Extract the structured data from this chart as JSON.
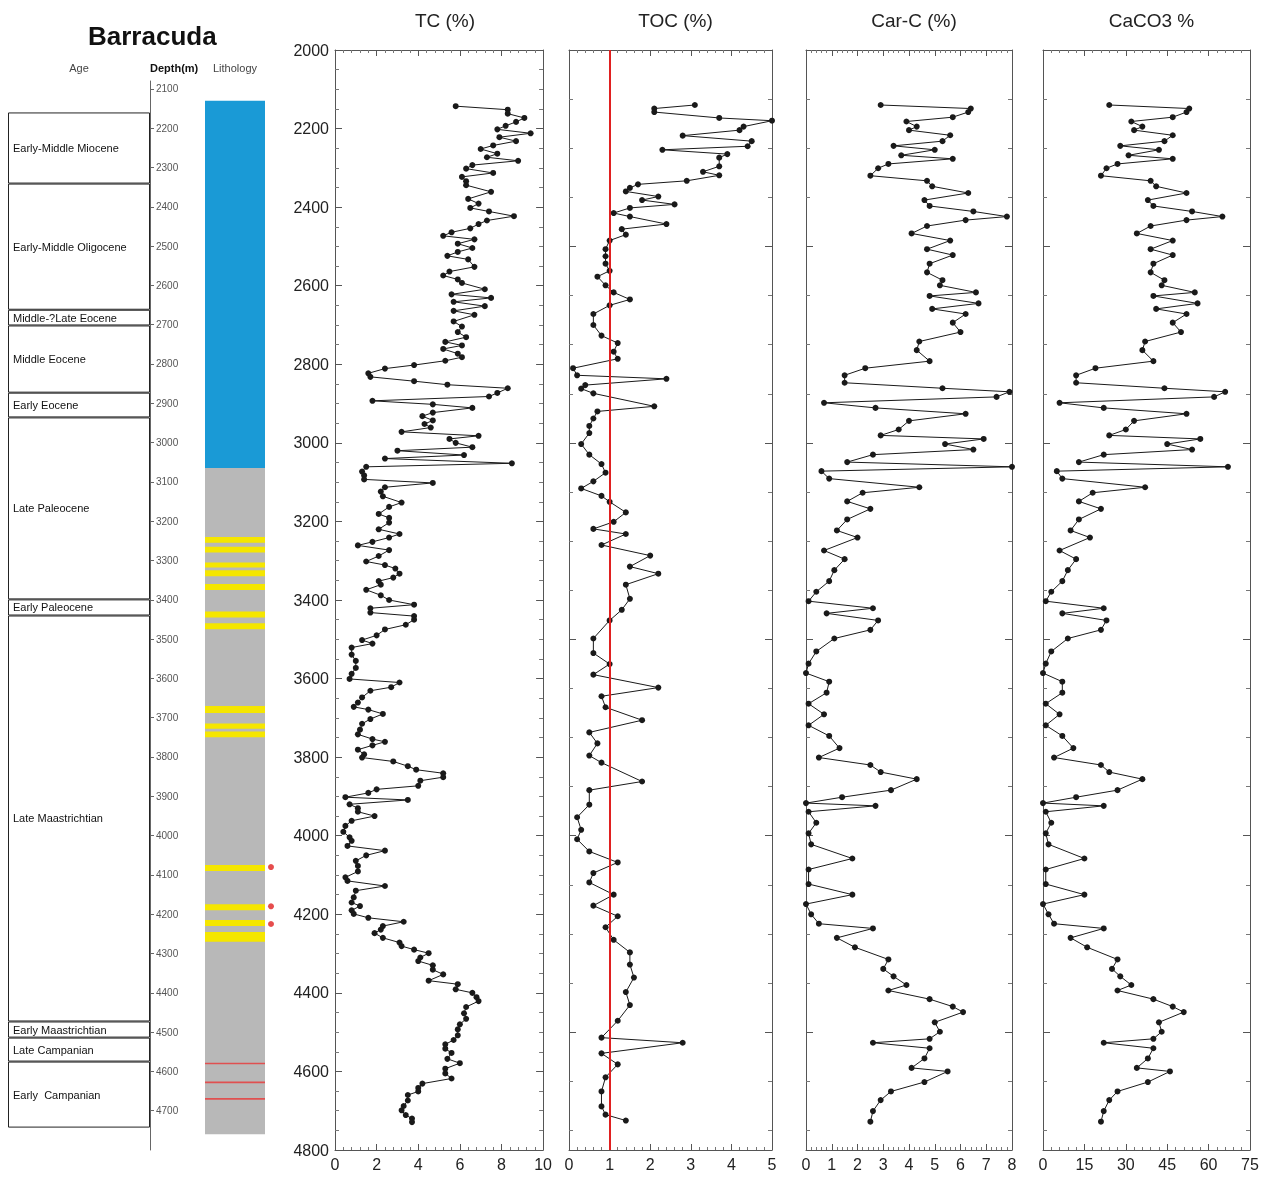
{
  "chart_data": [
    {
      "type": "bar",
      "title": "Barracuda",
      "ylabel": "Depth(m)",
      "categories": [
        "Age",
        "Lithology"
      ],
      "ylim": [
        4800,
        2080
      ],
      "yticks": [
        2100,
        2200,
        2300,
        2400,
        2500,
        2600,
        2700,
        2800,
        2900,
        3000,
        3100,
        3200,
        3300,
        3400,
        3500,
        3600,
        3700,
        3800,
        3900,
        4000,
        4100,
        4200,
        4300,
        4400,
        4500,
        4600,
        4700
      ],
      "series": [
        {
          "name": "Early-Middle Miocene",
          "color": "#ffffff",
          "base": [
            2160,
            null
          ],
          "values": [
            181,
            null
          ]
        },
        {
          "name": "Early-Middle Oligocene",
          "color": "#ffffff",
          "base": [
            2341,
            null
          ],
          "values": [
            321,
            null
          ]
        },
        {
          "name": "Middle-?Late Eocene",
          "color": "#ffffff",
          "base": [
            2662,
            null
          ],
          "values": [
            40,
            null
          ]
        },
        {
          "name": "Middle Eocene",
          "color": "#ffffff",
          "base": [
            2702,
            null
          ],
          "values": [
            171,
            null
          ]
        },
        {
          "name": "Early Eocene",
          "color": "#ffffff",
          "base": [
            2873,
            null
          ],
          "values": [
            63,
            null
          ]
        },
        {
          "name": "Late Paleocene",
          "color": "#ffffff",
          "base": [
            2936,
            null
          ],
          "values": [
            463,
            null
          ]
        },
        {
          "name": "Early Paleocene",
          "color": "#ffffff",
          "base": [
            3399,
            null
          ],
          "values": [
            41,
            null
          ]
        },
        {
          "name": "Late Maastrichtian",
          "color": "#ffffff",
          "base": [
            3440,
            null
          ],
          "values": [
            1033,
            null
          ]
        },
        {
          "name": "Early Maastrichtian",
          "color": "#ffffff",
          "base": [
            4473,
            null
          ],
          "values": [
            41,
            null
          ]
        },
        {
          "name": "Late Campanian",
          "color": "#ffffff",
          "base": [
            4514,
            null
          ],
          "values": [
            61,
            null
          ]
        },
        {
          "name": "Early  Campanian",
          "color": "#ffffff",
          "base": [
            4575,
            null
          ],
          "values": [
            168,
            null
          ]
        },
        {
          "color": "#1a9ad6",
          "base": [
            null,
            2130
          ],
          "values": [
            null,
            935
          ]
        },
        {
          "color": "#b8b8b8",
          "base": [
            null,
            3065
          ],
          "values": [
            null,
            1695
          ]
        },
        {
          "color": "#f5e600",
          "base": [
            null,
            3240
          ],
          "values": [
            null,
            15
          ]
        },
        {
          "color": "#f5e600",
          "base": [
            null,
            3265
          ],
          "values": [
            null,
            15
          ]
        },
        {
          "color": "#f5e600",
          "base": [
            null,
            3305
          ],
          "values": [
            null,
            13
          ]
        },
        {
          "color": "#f5e600",
          "base": [
            null,
            3325
          ],
          "values": [
            null,
            15
          ]
        },
        {
          "color": "#f5e600",
          "base": [
            null,
            3360
          ],
          "values": [
            null,
            15
          ]
        },
        {
          "color": "#f5e600",
          "base": [
            null,
            3430
          ],
          "values": [
            null,
            15
          ]
        },
        {
          "color": "#f5e600",
          "base": [
            null,
            3460
          ],
          "values": [
            null,
            15
          ]
        },
        {
          "color": "#f5e600",
          "base": [
            null,
            3670
          ],
          "values": [
            null,
            18
          ]
        },
        {
          "color": "#f5e600",
          "base": [
            null,
            3715
          ],
          "values": [
            null,
            13
          ]
        },
        {
          "color": "#f5e600",
          "base": [
            null,
            3735
          ],
          "values": [
            null,
            15
          ]
        },
        {
          "color": "#f5e600",
          "base": [
            null,
            4075
          ],
          "values": [
            null,
            15
          ]
        },
        {
          "color": "#f5e600",
          "base": [
            null,
            4175
          ],
          "values": [
            null,
            15
          ]
        },
        {
          "color": "#f5e600",
          "base": [
            null,
            4215
          ],
          "values": [
            null,
            15
          ]
        },
        {
          "color": "#f5e600",
          "base": [
            null,
            4245
          ],
          "values": [
            null,
            25
          ]
        },
        {
          "color": "#e05050",
          "base": [
            null,
            4578
          ],
          "values": [
            null,
            4
          ]
        },
        {
          "color": "#e05050",
          "base": [
            null,
            4626
          ],
          "values": [
            null,
            4
          ]
        },
        {
          "color": "#e05050",
          "base": [
            null,
            4668
          ],
          "values": [
            null,
            4
          ]
        },
        {
          "type": "scatter",
          "color": "#e02020",
          "x": [
            "Lithology",
            "Lithology",
            "Lithology"
          ],
          "values": [
            4080,
            4180,
            4225
          ]
        }
      ]
    },
    {
      "type": "line",
      "title": "TC (%)",
      "marker": "circle",
      "line_style": "solid",
      "color": "#1a1a1a",
      "xlim": [
        0,
        10
      ],
      "xticks": [
        0,
        2,
        4,
        6,
        8,
        10
      ],
      "ylim": [
        4800,
        2000
      ],
      "yticks": [
        2000,
        2200,
        2400,
        2600,
        2800,
        3000,
        3200,
        3400,
        3600,
        3800,
        4000,
        4200,
        4400,
        4600,
        4800
      ],
      "x": [
        5.8,
        8.3,
        8.3,
        9.1,
        8.7,
        8.2,
        7.8,
        9.4,
        7.9,
        8.7,
        7.6,
        7.0,
        7.8,
        7.3,
        8.8,
        6.6,
        6.3,
        7.6,
        6.1,
        6.3,
        6.3,
        7.5,
        6.4,
        6.9,
        6.5,
        7.4,
        8.6,
        7.3,
        6.9,
        6.5,
        5.6,
        5.2,
        6.7,
        5.9,
        6.6,
        5.9,
        5.4,
        6.4,
        6.7,
        5.5,
        5.2,
        5.9,
        6.1,
        7.2,
        5.6,
        7.5,
        5.7,
        7.2,
        5.7,
        6.7,
        5.7,
        6.1,
        5.9,
        6.3,
        5.3,
        6.1,
        5.2,
        5.9,
        6.1,
        5.3,
        3.8,
        2.4,
        1.6,
        1.7,
        3.8,
        5.4,
        8.3,
        7.8,
        7.4,
        1.8,
        4.7,
        6.6,
        4.7,
        4.2,
        4.7,
        4.3,
        4.6,
        3.2,
        6.9,
        5.5,
        5.8,
        6.6,
        3.0,
        6.2,
        2.4,
        8.5,
        1.5,
        1.3,
        1.4,
        1.4,
        4.7,
        2.4,
        2.2,
        2.3,
        3.2,
        2.6,
        2.1,
        2.6,
        2.6,
        2.1,
        3.1,
        2.6,
        1.8,
        1.1,
        2.6,
        2.1,
        1.5,
        2.4,
        2.9,
        3.1,
        2.8,
        2.1,
        2.2,
        1.5,
        2.2,
        2.6,
        3.8,
        1.7,
        1.7,
        3.8,
        3.8,
        3.4,
        2.4,
        2.0,
        1.3,
        1.8,
        0.8,
        0.8,
        1.0,
        1.0,
        0.8,
        0.7,
        3.1,
        2.7,
        1.7,
        1.3,
        1.1,
        0.9,
        1.6,
        2.3,
        1.7,
        1.3,
        1.2,
        1.1,
        1.8,
        2.4,
        1.8,
        1.1,
        1.4,
        1.3,
        2.8,
        3.5,
        3.9,
        5.2,
        5.2,
        4.1,
        4.0,
        2.0,
        1.6,
        0.5,
        3.5,
        0.7,
        1.1,
        1.1,
        1.9,
        0.8,
        0.5,
        0.4,
        0.7,
        0.8,
        0.6,
        2.4,
        1.5,
        1.0,
        1.1,
        1.1,
        0.5,
        0.6,
        2.4,
        1.0,
        0.9,
        0.8,
        1.2,
        0.8,
        0.9,
        1.6,
        3.3,
        2.3,
        2.2,
        1.9,
        2.3,
        3.1,
        3.2,
        3.8,
        4.5,
        4.1,
        4.0,
        4.7,
        4.7,
        5.2,
        4.5,
        5.9,
        5.8,
        6.6,
        6.8,
        6.9,
        6.3,
        6.2,
        6.3,
        6.0,
        5.9,
        5.9,
        5.7,
        5.3,
        5.3,
        5.6,
        5.4,
        6.0,
        5.3,
        5.3,
        5.6,
        4.2,
        4.0,
        4.0,
        3.5,
        3.5,
        3.3,
        3.2,
        3.4,
        3.7,
        3.7
      ],
      "values": [
        2143,
        2152,
        2162,
        2173,
        2183,
        2193,
        2202,
        2212,
        2222,
        2232,
        2243,
        2252,
        2264,
        2273,
        2282,
        2293,
        2302,
        2313,
        2323,
        2334,
        2344,
        2361,
        2379,
        2391,
        2402,
        2411,
        2423,
        2434,
        2443,
        2454,
        2464,
        2473,
        2482,
        2493,
        2504,
        2514,
        2524,
        2533,
        2552,
        2564,
        2574,
        2584,
        2593,
        2609,
        2622,
        2631,
        2641,
        2652,
        2664,
        2674,
        2691,
        2704,
        2718,
        2731,
        2743,
        2752,
        2761,
        2773,
        2782,
        2791,
        2802,
        2811,
        2823,
        2832,
        2843,
        2852,
        2861,
        2873,
        2882,
        2893,
        2902,
        2911,
        2923,
        2932,
        2943,
        2952,
        2961,
        2972,
        2982,
        2990,
        3000,
        3011,
        3020,
        3031,
        3040,
        3052,
        3061,
        3073,
        3083,
        3093,
        3102,
        3113,
        3124,
        3136,
        3152,
        3163,
        3181,
        3191,
        3203,
        3220,
        3232,
        3241,
        3252,
        3261,
        3273,
        3288,
        3302,
        3311,
        3320,
        3333,
        3343,
        3352,
        3361,
        3374,
        3388,
        3400,
        3412,
        3421,
        3432,
        3441,
        3450,
        3463,
        3475,
        3490,
        3502,
        3511,
        3521,
        3539,
        3555,
        3573,
        3588,
        3601,
        3610,
        3622,
        3631,
        3648,
        3661,
        3672,
        3679,
        3690,
        3703,
        3715,
        3730,
        3742,
        3754,
        3761,
        3770,
        3781,
        3793,
        3801,
        3811,
        3823,
        3832,
        3841,
        3851,
        3860,
        3873,
        3882,
        3891,
        3902,
        3909,
        3920,
        3930,
        3939,
        3950,
        3962,
        3975,
        3990,
        4004,
        4013,
        4026,
        4038,
        4050,
        4064,
        4077,
        4091,
        4106,
        4115,
        4128,
        4140,
        4157,
        4170,
        4179,
        4190,
        4199,
        4209,
        4219,
        4230,
        4239,
        4248,
        4260,
        4272,
        4281,
        4290,
        4299,
        4310,
        4319,
        4330,
        4341,
        4353,
        4369,
        4378,
        4391,
        4400,
        4411,
        4421,
        4436,
        4452,
        4466,
        4480,
        4493,
        4508,
        4520,
        4531,
        4542,
        4553,
        4568,
        4579,
        4593,
        4605,
        4618,
        4631,
        4642,
        4651,
        4660,
        4674,
        4688,
        4699,
        4711,
        4720,
        4729
      ]
    },
    {
      "type": "line",
      "title": "TOC (%)",
      "marker": "circle",
      "line_style": "solid",
      "color": "#1a1a1a",
      "xlim": [
        0,
        5
      ],
      "xticks": [
        0,
        1,
        2,
        3,
        4,
        5
      ],
      "ylim": [
        4800,
        2000
      ],
      "tick_labels": "x",
      "ref_lines": [
        {
          "axis": "x",
          "value": 1,
          "color": "#e02020"
        }
      ],
      "x": [
        3.1,
        2.1,
        2.1,
        3.7,
        5.0,
        4.3,
        4.2,
        2.8,
        4.5,
        4.4,
        2.3,
        3.9,
        3.7,
        3.7,
        3.3,
        3.7,
        2.9,
        1.7,
        1.5,
        1.4,
        2.2,
        1.8,
        2.6,
        1.5,
        1.1,
        1.5,
        2.4,
        1.3,
        1.4,
        1.0,
        0.9,
        0.9,
        0.9,
        1.0,
        0.7,
        0.9,
        1.1,
        1.5,
        1.0,
        0.6,
        0.6,
        0.8,
        1.2,
        1.1,
        1.2,
        0.1,
        0.2,
        2.4,
        0.4,
        0.3,
        0.6,
        2.1,
        0.7,
        0.6,
        0.5,
        0.5,
        0.3,
        0.5,
        0.8,
        0.9,
        0.6,
        0.3,
        0.8,
        1.0,
        1.4,
        1.1,
        0.6,
        1.4,
        0.8,
        2.0,
        1.5,
        2.2,
        1.4,
        1.5,
        1.3,
        1.0,
        0.6,
        0.6,
        1.0,
        0.6,
        2.2,
        0.8,
        0.9,
        1.8,
        0.5,
        0.7,
        0.5,
        0.8,
        1.8,
        0.5,
        0.5,
        0.2,
        0.3,
        0.2,
        0.5,
        1.2,
        0.6,
        0.5,
        1.1,
        0.6,
        1.2,
        0.9,
        1.1,
        1.5,
        1.5,
        1.6,
        1.4,
        1.5,
        1.2,
        0.8,
        2.8,
        0.8,
        1.2,
        0.9,
        0.8,
        0.8,
        0.9,
        1.4
      ],
      "values": [
        2140,
        2149,
        2158,
        2173,
        2180,
        2195,
        2204,
        2218,
        2232,
        2245,
        2254,
        2265,
        2274,
        2296,
        2310,
        2319,
        2333,
        2342,
        2351,
        2360,
        2373,
        2382,
        2393,
        2402,
        2415,
        2424,
        2443,
        2456,
        2470,
        2485,
        2507,
        2525,
        2544,
        2562,
        2577,
        2599,
        2617,
        2635,
        2650,
        2672,
        2700,
        2727,
        2746,
        2768,
        2786,
        2810,
        2828,
        2837,
        2853,
        2862,
        2874,
        2907,
        2920,
        2938,
        2957,
        2975,
        3003,
        3030,
        3054,
        3076,
        3098,
        3116,
        3135,
        3150,
        3177,
        3201,
        3219,
        3232,
        3260,
        3287,
        3315,
        3333,
        3361,
        3397,
        3425,
        3452,
        3498,
        3535,
        3563,
        3590,
        3623,
        3645,
        3673,
        3706,
        3737,
        3765,
        3796,
        3814,
        3862,
        3884,
        3921,
        3953,
        3985,
        4009,
        4040,
        4068,
        4095,
        4119,
        4150,
        4178,
        4205,
        4233,
        4265,
        4297,
        4328,
        4361,
        4398,
        4431,
        4471,
        4514,
        4527,
        4554,
        4582,
        4615,
        4651,
        4689,
        4710,
        4725
      ]
    },
    {
      "type": "line",
      "title": "Car-C (%)",
      "marker": "circle",
      "line_style": "solid",
      "color": "#1a1a1a",
      "xlim": [
        0,
        8
      ],
      "xticks": [
        0,
        1,
        2,
        3,
        4,
        5,
        6,
        7,
        8
      ],
      "ylim": [
        4800,
        2000
      ],
      "tick_labels": "x",
      "x": [
        2.9,
        6.4,
        6.3,
        5.7,
        3.9,
        4.3,
        4.0,
        5.6,
        5.3,
        3.4,
        5.0,
        3.7,
        5.7,
        3.2,
        2.8,
        2.5,
        4.7,
        4.9,
        6.3,
        4.6,
        4.8,
        6.5,
        7.8,
        6.2,
        4.7,
        4.1,
        5.6,
        4.7,
        5.7,
        4.8,
        4.7,
        5.3,
        5.2,
        6.6,
        4.8,
        6.7,
        4.9,
        6.2,
        5.7,
        6.0,
        4.4,
        4.3,
        4.8,
        2.3,
        1.5,
        1.5,
        5.3,
        7.9,
        7.4,
        0.7,
        2.7,
        6.2,
        4.0,
        3.6,
        2.9,
        6.9,
        5.4,
        6.5,
        2.6,
        1.6,
        8.0,
        0.6,
        0.9,
        4.4,
        2.2,
        1.6,
        2.5,
        1.6,
        1.2,
        2.0,
        0.7,
        1.5,
        1.1,
        0.9,
        0.4,
        0.1,
        2.6,
        0.8,
        2.8,
        2.5,
        1.1,
        0.4,
        0.1,
        0.0,
        0.9,
        0.8,
        0.1,
        0.7,
        0.1,
        0.9,
        1.3,
        0.5,
        2.5,
        2.9,
        4.3,
        3.3,
        1.4,
        0.0,
        2.7,
        0.1,
        0.4,
        0.1,
        0.2,
        1.8,
        0.1,
        0.1,
        1.8,
        0.0,
        0.2,
        0.5,
        2.6,
        1.2,
        1.9,
        3.2,
        3.0,
        3.4,
        3.9,
        3.2,
        4.8,
        5.7,
        6.1,
        5.0,
        5.2,
        4.8,
        2.6,
        4.8,
        4.6,
        4.1,
        5.5,
        4.6,
        3.3,
        2.9,
        2.6,
        2.5
      ],
      "values": [
        2140,
        2149,
        2158,
        2171,
        2182,
        2195,
        2204,
        2217,
        2232,
        2244,
        2254,
        2268,
        2277,
        2290,
        2301,
        2320,
        2333,
        2347,
        2364,
        2382,
        2397,
        2411,
        2424,
        2433,
        2448,
        2467,
        2485,
        2507,
        2522,
        2544,
        2566,
        2586,
        2599,
        2617,
        2626,
        2645,
        2659,
        2672,
        2694,
        2718,
        2742,
        2764,
        2792,
        2810,
        2828,
        2847,
        2861,
        2870,
        2883,
        2898,
        2911,
        2926,
        2944,
        2966,
        2981,
        2990,
        3003,
        3017,
        3030,
        3049,
        3061,
        3072,
        3091,
        3113,
        3127,
        3149,
        3168,
        3195,
        3223,
        3241,
        3274,
        3296,
        3324,
        3352,
        3379,
        3403,
        3421,
        3434,
        3452,
        3476,
        3498,
        3531,
        3562,
        3586,
        3608,
        3636,
        3664,
        3691,
        3719,
        3746,
        3777,
        3801,
        3820,
        3838,
        3856,
        3884,
        3902,
        3917,
        3924,
        3939,
        3967,
        3994,
        4022,
        4058,
        4086,
        4123,
        4150,
        4174,
        4200,
        4224,
        4236,
        4260,
        4284,
        4315,
        4339,
        4358,
        4380,
        4394,
        4416,
        4435,
        4449,
        4475,
        4499,
        4517,
        4527,
        4541,
        4567,
        4591,
        4600,
        4627,
        4651,
        4673,
        4701,
        4728
      ]
    },
    {
      "type": "line",
      "title": "CaCO3 %",
      "marker": "circle",
      "line_style": "solid",
      "color": "#1a1a1a",
      "xlim": [
        0,
        75
      ],
      "xticks": [
        0,
        15,
        30,
        45,
        60,
        75
      ],
      "ylim": [
        4800,
        2000
      ],
      "tick_labels": "x",
      "x": [
        24,
        53,
        52,
        47,
        32,
        36,
        33,
        47,
        44,
        28,
        42,
        31,
        47,
        27,
        23,
        21,
        39,
        41,
        52,
        38,
        40,
        54,
        65,
        52,
        39,
        34,
        47,
        39,
        47,
        40,
        39,
        44,
        43,
        55,
        40,
        56,
        41,
        52,
        47,
        50,
        37,
        36,
        40,
        19,
        12,
        12,
        44,
        66,
        62,
        6,
        22,
        52,
        33,
        30,
        24,
        57,
        45,
        54,
        22,
        13,
        67,
        5,
        7,
        37,
        18,
        13,
        21,
        13,
        10,
        17,
        6,
        12,
        9,
        7,
        3,
        1,
        22,
        7,
        23,
        21,
        9,
        3,
        1,
        0,
        7,
        7,
        1,
        6,
        1,
        7,
        11,
        4,
        21,
        24,
        36,
        27,
        12,
        0,
        22,
        1,
        3,
        1,
        2,
        15,
        1,
        1,
        15,
        0,
        2,
        4,
        22,
        10,
        16,
        27,
        25,
        28,
        32,
        27,
        40,
        47,
        51,
        42,
        43,
        40,
        22,
        40,
        38,
        34,
        46,
        38,
        27,
        24,
        22,
        21
      ],
      "values": [
        2140,
        2149,
        2158,
        2171,
        2182,
        2195,
        2204,
        2217,
        2232,
        2244,
        2254,
        2268,
        2277,
        2290,
        2301,
        2320,
        2333,
        2347,
        2364,
        2382,
        2397,
        2411,
        2424,
        2433,
        2448,
        2467,
        2485,
        2507,
        2522,
        2544,
        2566,
        2586,
        2599,
        2617,
        2626,
        2645,
        2659,
        2672,
        2694,
        2718,
        2742,
        2764,
        2792,
        2810,
        2828,
        2847,
        2861,
        2870,
        2883,
        2898,
        2911,
        2926,
        2944,
        2966,
        2981,
        2990,
        3003,
        3017,
        3030,
        3049,
        3061,
        3072,
        3091,
        3113,
        3127,
        3149,
        3168,
        3195,
        3223,
        3241,
        3274,
        3296,
        3324,
        3352,
        3379,
        3403,
        3421,
        3434,
        3452,
        3476,
        3498,
        3531,
        3562,
        3586,
        3608,
        3636,
        3664,
        3691,
        3719,
        3746,
        3777,
        3801,
        3820,
        3838,
        3856,
        3884,
        3902,
        3917,
        3924,
        3939,
        3967,
        3994,
        4022,
        4058,
        4086,
        4123,
        4150,
        4174,
        4200,
        4224,
        4236,
        4260,
        4284,
        4315,
        4339,
        4358,
        4380,
        4394,
        4416,
        4435,
        4449,
        4475,
        4499,
        4517,
        4527,
        4541,
        4567,
        4591,
        4600,
        4627,
        4651,
        4673,
        4701,
        4728
      ]
    }
  ]
}
